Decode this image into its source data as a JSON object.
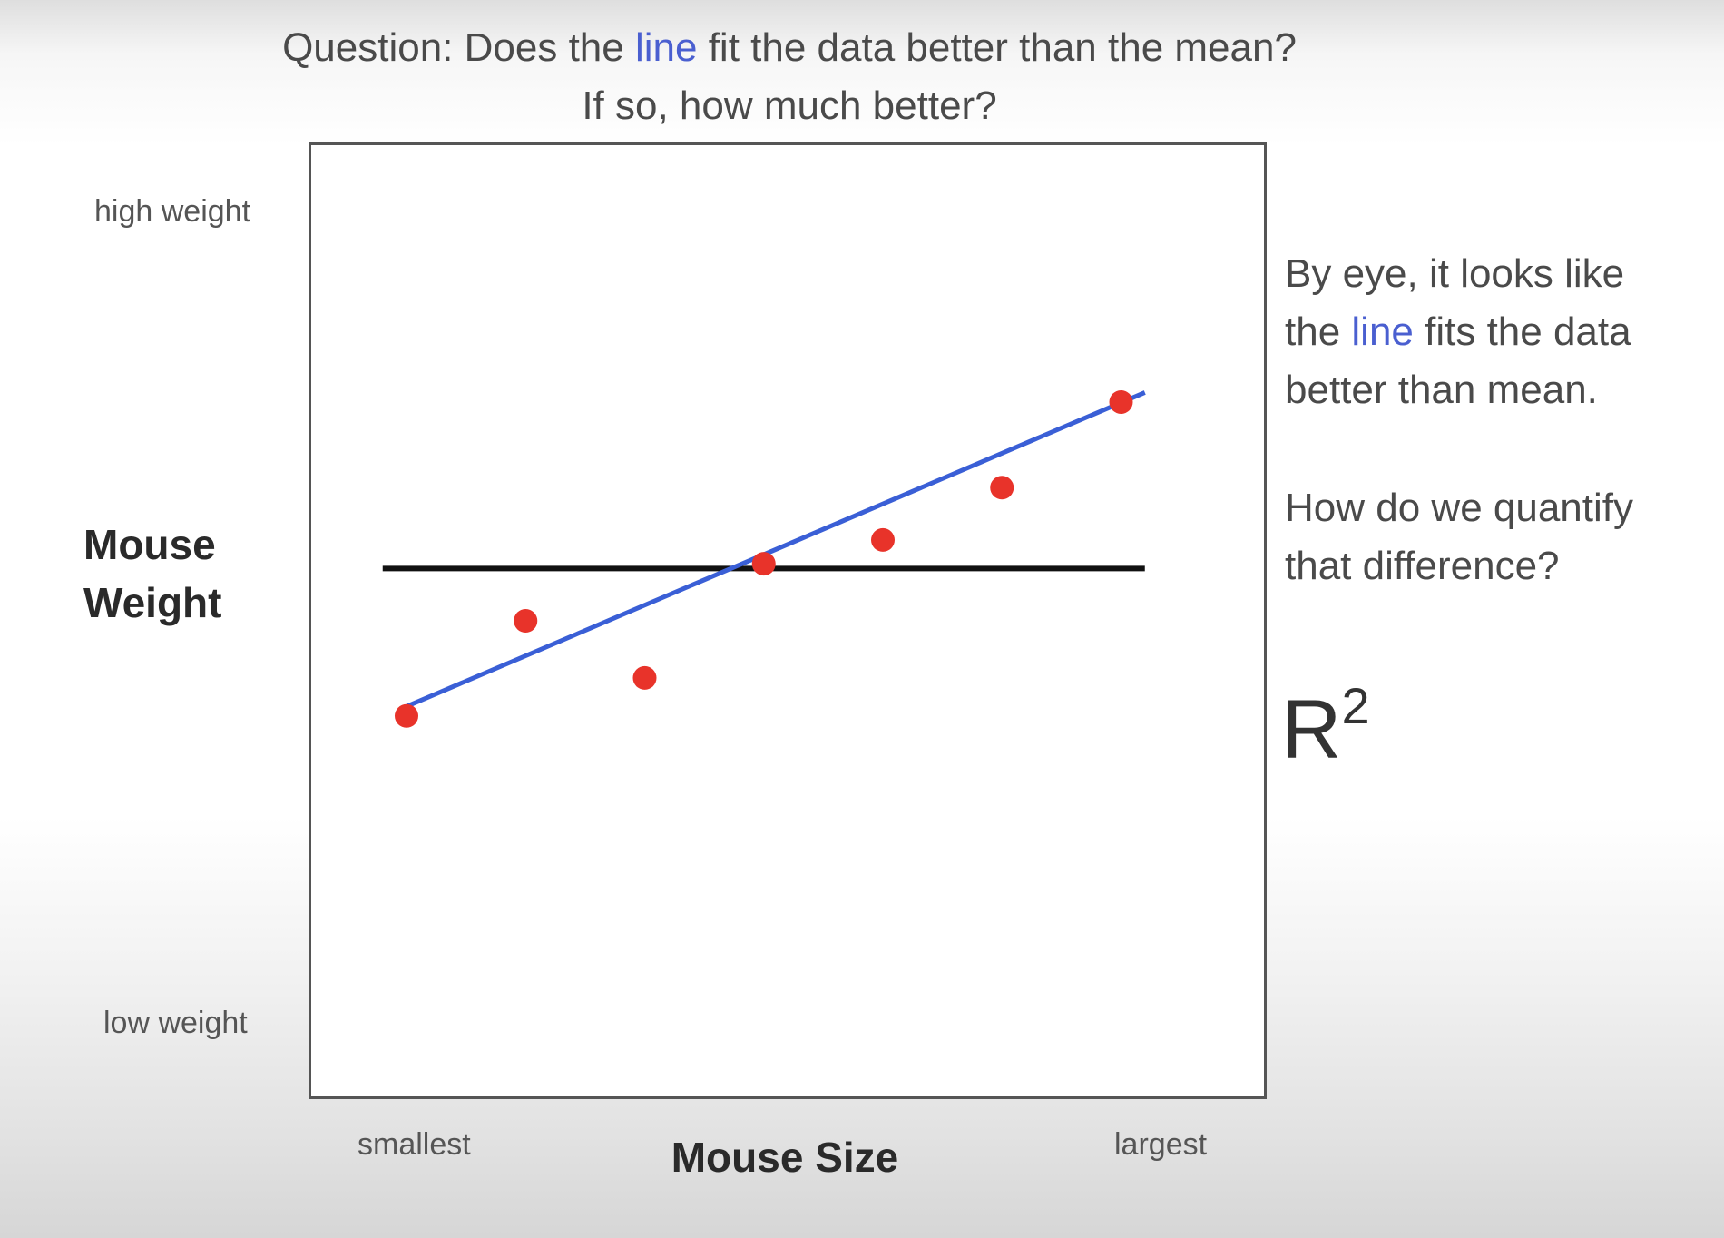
{
  "question": {
    "prefix": "Question:  Does the ",
    "highlight": "line",
    "suffix": " fit the data better than the mean?",
    "line2": "If so, how much better?"
  },
  "side_text": {
    "p1_prefix": "By eye, it looks like",
    "p1_line2_start": "the ",
    "p1_highlight": "line",
    "p1_line2_end": " fits the data",
    "p1_line3": "better than mean.",
    "p2_line1": "How do we quantify",
    "p2_line2": "that difference?",
    "r_symbol": "R",
    "r_exponent": "2"
  },
  "colors": {
    "line": "#3a5fd6",
    "mean": "#111111",
    "points": "#e8332a",
    "highlight_text": "#4a5fd0"
  },
  "chart_data": {
    "type": "scatter",
    "xlabel": "Mouse Size",
    "ylabel": "Mouse Weight",
    "x_tick_low": "smallest",
    "x_tick_high": "largest",
    "y_tick_high": "high weight",
    "y_tick_low": "low weight",
    "xlim": [
      0,
      10
    ],
    "ylim": [
      0,
      10
    ],
    "points": [
      {
        "x": 1.0,
        "y": 4.0
      },
      {
        "x": 2.25,
        "y": 5.0
      },
      {
        "x": 3.5,
        "y": 4.4
      },
      {
        "x": 4.75,
        "y": 5.6
      },
      {
        "x": 6.0,
        "y": 5.85
      },
      {
        "x": 7.25,
        "y": 6.4
      },
      {
        "x": 8.5,
        "y": 7.3
      }
    ],
    "fit_line": {
      "x1": 1.0,
      "y1": 4.1,
      "x2": 8.75,
      "y2": 7.4
    },
    "mean_line": {
      "x1": 0.75,
      "y1": 5.55,
      "x2": 8.75,
      "y2": 5.55
    }
  }
}
